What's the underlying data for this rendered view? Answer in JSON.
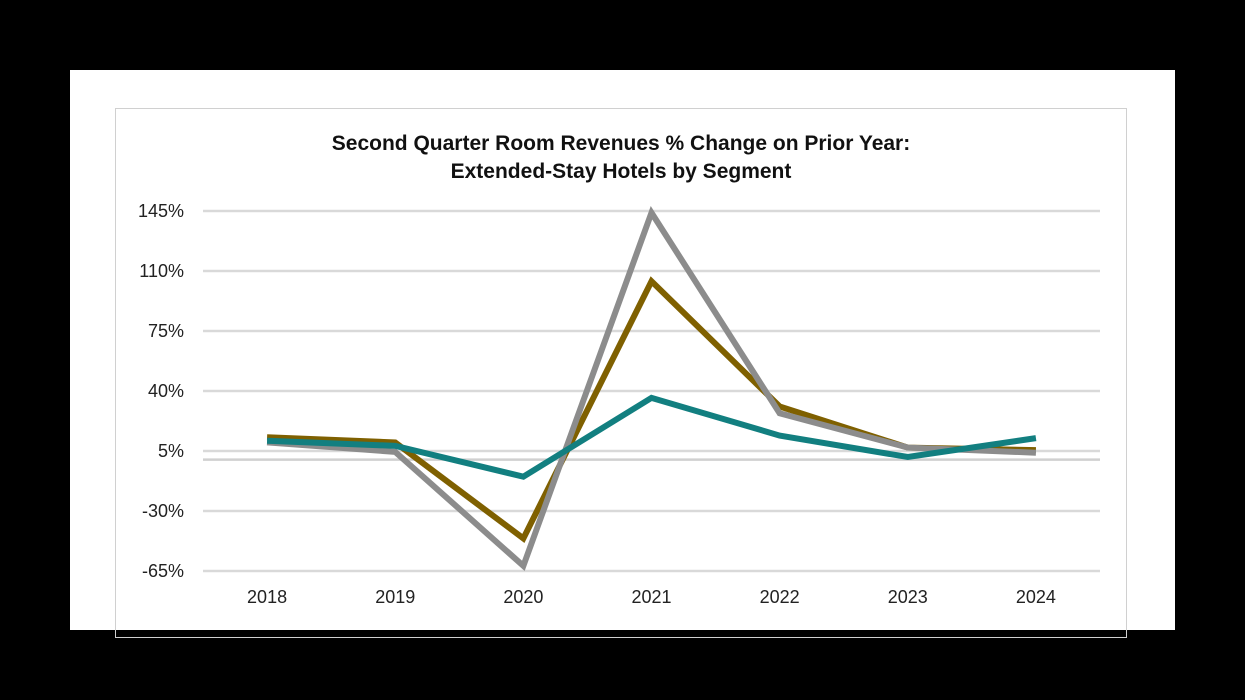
{
  "chart_data": {
    "type": "line",
    "title": "Second Quarter Room Revenues % Change on Prior Year:",
    "subtitle": "Extended-Stay Hotels by Segment",
    "xlabel": "",
    "ylabel": "",
    "categories": [
      "2018",
      "2019",
      "2020",
      "2021",
      "2022",
      "2023",
      "2024"
    ],
    "y_ticks": [
      "145%",
      "110%",
      "75%",
      "40%",
      "5%",
      "-30%",
      "-65%"
    ],
    "ylim": [
      -65,
      145
    ],
    "grid": true,
    "legend": "none",
    "series": [
      {
        "color": "#7f6000",
        "values": [
          13,
          10,
          -46,
          104,
          31,
          7,
          5.5
        ]
      },
      {
        "color": "#8c8c8c",
        "values": [
          10,
          4.5,
          -62,
          144,
          27,
          7,
          4
        ]
      },
      {
        "color": "#127f80",
        "values": [
          11,
          8,
          -10,
          36,
          14,
          1.5,
          12.5
        ]
      }
    ]
  }
}
